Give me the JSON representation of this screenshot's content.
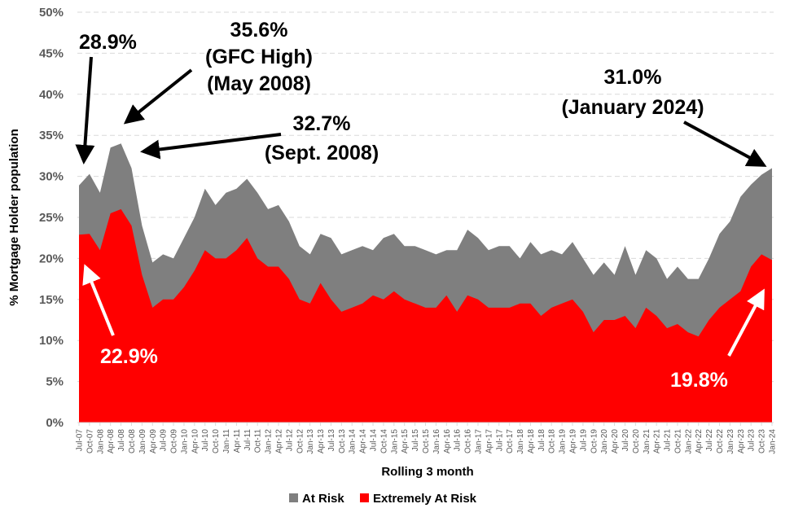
{
  "chart_data": {
    "type": "area",
    "title": "",
    "xlabel": "Rolling 3 month",
    "ylabel": "% Mortgage Holder population",
    "ylim": [
      0,
      50
    ],
    "yticks": [
      "0%",
      "5%",
      "10%",
      "15%",
      "20%",
      "25%",
      "30%",
      "35%",
      "40%",
      "45%",
      "50%"
    ],
    "grid": true,
    "legend_position": "bottom",
    "categories": [
      "Jul-07",
      "Oct-07",
      "Jan-08",
      "Apr-08",
      "Jul-08",
      "Oct-08",
      "Jan-09",
      "Apr-09",
      "Jul-09",
      "Oct-09",
      "Jan-10",
      "Apr-10",
      "Jul-10",
      "Oct-10",
      "Jan-11",
      "Apr-11",
      "Jul-11",
      "Oct-11",
      "Jan-12",
      "Apr-12",
      "Jul-12",
      "Oct-12",
      "Jan-13",
      "Apr-13",
      "Jul-13",
      "Oct-13",
      "Jan-14",
      "Apr-14",
      "Jul-14",
      "Oct-14",
      "Jan-15",
      "Apr-15",
      "Jul-15",
      "Oct-15",
      "Jan-16",
      "Apr-16",
      "Jul-16",
      "Oct-16",
      "Jan-17",
      "Apr-17",
      "Jul-17",
      "Oct-17",
      "Jan-18",
      "Apr-18",
      "Jul-18",
      "Oct-18",
      "Jan-19",
      "Apr-19",
      "Jul-19",
      "Oct-19",
      "Jan-20",
      "Apr-20",
      "Jul-20",
      "Oct-20",
      "Jan-21",
      "Apr-21",
      "Jul-21",
      "Oct-21",
      "Jan-22",
      "Apr-22",
      "Jul-22",
      "Oct-22",
      "Jan-23",
      "Apr-23",
      "Jul-23",
      "Oct-23",
      "Jan-24"
    ],
    "series": [
      {
        "name": "At Risk",
        "color": "#7f7f7f",
        "values": [
          28.9,
          30.3,
          28.0,
          33.5,
          34.0,
          31.0,
          24.0,
          19.5,
          20.5,
          20.0,
          22.5,
          25.0,
          28.5,
          26.5,
          28.0,
          28.5,
          29.7,
          28.0,
          26.0,
          26.5,
          24.5,
          21.5,
          20.5,
          23.0,
          22.5,
          20.5,
          21.0,
          21.5,
          21.0,
          22.5,
          23.0,
          21.5,
          21.5,
          21.0,
          20.5,
          21.0,
          21.0,
          23.5,
          22.5,
          21.0,
          21.5,
          21.5,
          20.0,
          22.0,
          20.5,
          21.0,
          20.5,
          22.0,
          20.0,
          18.0,
          19.5,
          18.0,
          21.5,
          18.0,
          21.0,
          20.0,
          17.5,
          19.0,
          17.5,
          17.5,
          20.0,
          23.0,
          24.5,
          27.5,
          29.0,
          30.2,
          31.0
        ]
      },
      {
        "name": "Extremely At Risk",
        "color": "#ff0000",
        "values": [
          22.9,
          23.0,
          21.0,
          25.5,
          26.0,
          24.0,
          18.0,
          14.0,
          15.0,
          15.0,
          16.5,
          18.5,
          21.0,
          20.0,
          20.0,
          21.0,
          22.5,
          20.0,
          19.0,
          19.0,
          17.5,
          15.0,
          14.5,
          17.0,
          15.0,
          13.5,
          14.0,
          14.5,
          15.5,
          15.0,
          16.0,
          15.0,
          14.5,
          14.0,
          14.0,
          15.5,
          13.5,
          15.5,
          15.0,
          14.0,
          14.0,
          14.0,
          14.5,
          14.5,
          13.0,
          14.0,
          14.5,
          15.0,
          13.5,
          11.0,
          12.5,
          12.5,
          13.0,
          11.5,
          14.0,
          13.0,
          11.5,
          12.0,
          11.0,
          10.5,
          12.5,
          14.0,
          15.0,
          16.0,
          19.0,
          20.5,
          19.8
        ]
      }
    ],
    "annotations": {
      "start_at_risk": "28.9%",
      "gfc_high": [
        "35.6%",
        "(GFC High)",
        "(May 2008)"
      ],
      "sept_2008": [
        "32.7%",
        "(Sept. 2008)"
      ],
      "jan_2024": [
        "31.0%",
        "(January 2024)"
      ],
      "start_extreme": "22.9%",
      "end_extreme": "19.8%"
    }
  }
}
